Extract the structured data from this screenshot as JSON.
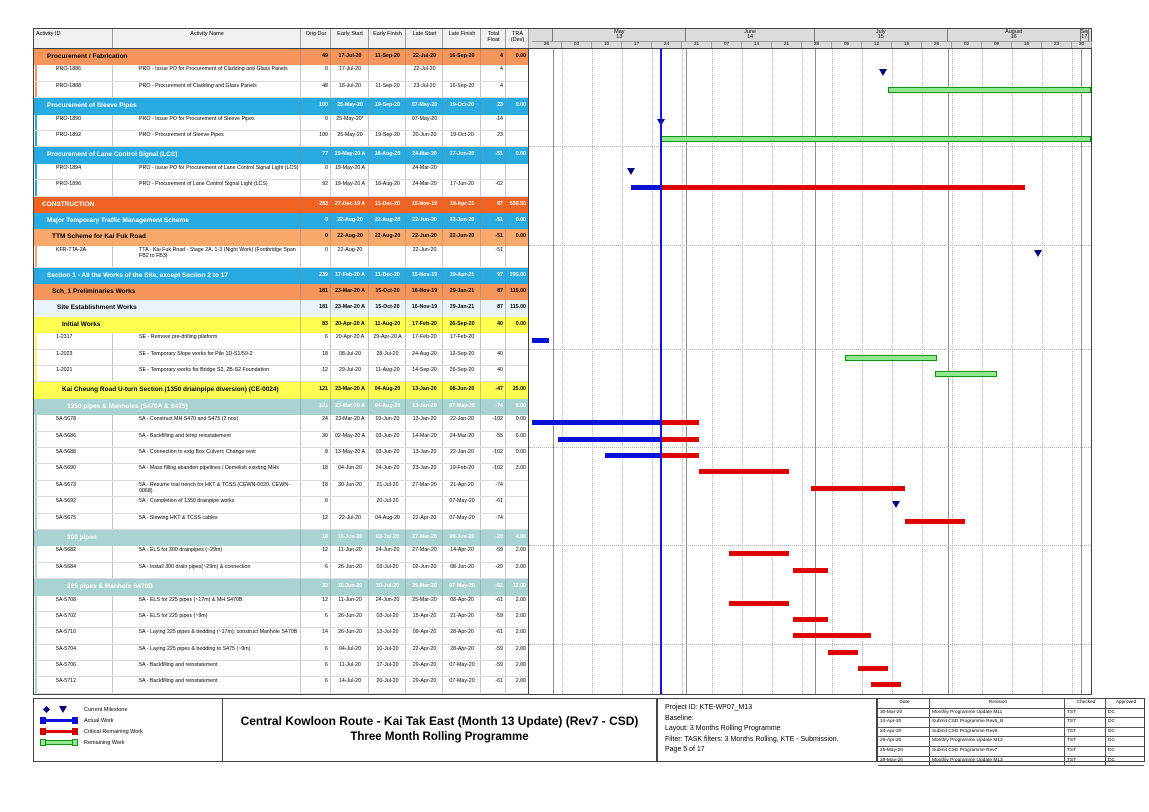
{
  "accent_colors": {
    "construction_orange": "#F26322",
    "band_orange": "#F5955C",
    "band_orange_light": "#F9A96B",
    "band_blue": "#29ABE2",
    "band_pale": "#EAF3FA",
    "band_yellow": "#FFFF52",
    "band_teal": "#A9D3D2",
    "actual_bar": "#0912D6",
    "critical_bar": "#E00000",
    "remaining_bar": "#8FE78F",
    "milestone": "#000080",
    "data_date_line": "#1515E0"
  },
  "table": {
    "columns": [
      "Activity ID",
      "Activity Name",
      "Orig Dur",
      "Early Start",
      "Early Finish",
      "Late Start",
      "Late Finish",
      "Total Float",
      "TRA (Dev)"
    ],
    "rows": [
      {
        "t": "band",
        "cls": "b-o1",
        "lvl": 1,
        "label": "Procurement / Fabrication",
        "v": [
          "49",
          "17-Jul-20",
          "11-Sep-20",
          "22-Jul-20",
          "16-Sep-20",
          "4",
          "0.00"
        ]
      },
      {
        "t": "task",
        "id": "PRO-1886",
        "name": "PRO - Issue PO for Procurement of Cladding and Glass Panels",
        "v": [
          "0",
          "17-Jul-20",
          "",
          "22-Jul-20",
          "",
          "4",
          ""
        ],
        "stripe": "#F5955C",
        "bars": [
          {
            "k": "ms",
            "d": "2020-07-17"
          }
        ]
      },
      {
        "t": "task",
        "id": "PRO-1888",
        "name": "PRO - Procurement of Cladding and Glass Panels",
        "v": [
          "48",
          "18-Jul-20",
          "11-Sep-20",
          "23-Jul-20",
          "16-Sep-20",
          "4",
          ""
        ],
        "stripe": "#F5955C",
        "bars": [
          {
            "k": "rm",
            "s": "2020-07-18",
            "e": "2020-09-11"
          }
        ]
      },
      {
        "t": "band",
        "cls": "b-blue",
        "lvl": 1,
        "label": "Procurement of Sleeve Pipes",
        "v": [
          "100",
          "25-May-20",
          "19-Sep-20",
          "07-May-20",
          "19-Oct-20",
          "23",
          "0.00"
        ]
      },
      {
        "t": "task",
        "id": "PRO-1890",
        "name": "PRO - Issue PO for Procurement of Sleeve Pipes",
        "v": [
          "0",
          "25-May-20*",
          "",
          "07-May-20",
          "",
          "-14",
          ""
        ],
        "stripe": "#29ABE2",
        "bars": [
          {
            "k": "ms",
            "d": "2020-05-26"
          }
        ]
      },
      {
        "t": "task",
        "id": "PRO-1892",
        "name": "PRO - Procurement of Sleeve Pipes",
        "v": [
          "100",
          "25-May-20",
          "19-Sep-20",
          "20-Jun-20",
          "19-Oct-20",
          "23",
          ""
        ],
        "stripe": "#29ABE2",
        "bars": [
          {
            "k": "rm",
            "s": "2020-05-26",
            "e": "2020-09-19"
          }
        ]
      },
      {
        "t": "band",
        "cls": "b-blue",
        "lvl": 1,
        "label": "Procurement of Lane Control Signal (LCS)",
        "v": [
          "77",
          "19-May-20 A",
          "18-Aug-20",
          "24-Mar-20",
          "17-Jun-20",
          "-51",
          "0.00"
        ]
      },
      {
        "t": "task",
        "id": "PRO-1894",
        "name": "PRO - Issue PO for Procurement of Lane Control Signal Light (LCS)",
        "v": [
          "0",
          "19-May-20 A",
          "",
          "24-Mar-20",
          "",
          "",
          ""
        ],
        "stripe": "#29ABE2",
        "bars": [
          {
            "k": "ms",
            "d": "2020-05-19"
          }
        ]
      },
      {
        "t": "task",
        "id": "PRO-1896",
        "name": "PRO - Procurement of Lane Control Signal Light (LCS)",
        "v": [
          "92",
          "19-May-20 A",
          "18-Aug-20",
          "24-Mar-20",
          "17-Jun-20",
          "-62",
          ""
        ],
        "stripe": "#29ABE2",
        "bars": [
          {
            "k": "a",
            "s": "2020-05-19",
            "e": "2020-05-25"
          },
          {
            "k": "cr",
            "s": "2020-05-26",
            "e": "2020-08-18"
          }
        ]
      },
      {
        "t": "band",
        "cls": "b-o0",
        "lvl": 0,
        "label": "CONSTRUCTION",
        "v": [
          "283",
          "27-Dec-19 A",
          "11-Dec-20",
          "15-Nov-19",
          "19-Apr-21",
          "97",
          "556.50"
        ]
      },
      {
        "t": "band",
        "cls": "b-blue",
        "lvl": 1,
        "label": "Major Temporary Traffic Management Scheme",
        "v": [
          "0",
          "22-Aug-20",
          "22-Aug-20",
          "22-Jun-20",
          "22-Jun-20",
          "-51",
          "0.00"
        ]
      },
      {
        "t": "band",
        "cls": "b-o2",
        "lvl": 2,
        "label": "TTM Scheme for Kai Fuk Road",
        "v": [
          "0",
          "22-Aug-20",
          "22-Aug-20",
          "22-Jun-20",
          "22-Jun-20",
          "-51",
          "0.00"
        ]
      },
      {
        "t": "task",
        "id": "KFR-TTA-2A",
        "name": "TTA - Kai Fuk Road - Stage 2A, 1-3 (Night Work) (Footbridge Span FB2 to FB3)",
        "v": [
          "0",
          "22-Aug-20",
          "",
          "22-Jun-20",
          "",
          "-51",
          ""
        ],
        "stripe": "#F9A96B",
        "h": 22,
        "bars": [
          {
            "k": "ms",
            "d": "2020-08-22"
          }
        ]
      },
      {
        "t": "band",
        "cls": "b-blue",
        "lvl": 1,
        "label": "Section 1 - All the Works of the Site, except Section 2 to 17",
        "v": [
          "239",
          "17-Feb-20 A",
          "11-Dec-20",
          "15-Nov-19",
          "19-Apr-21",
          "97",
          "295.00"
        ]
      },
      {
        "t": "band",
        "cls": "b-o1",
        "lvl": 2,
        "label": "Sch_1 Preliminaries Works",
        "v": [
          "181",
          "23-Mar-20 A",
          "15-Oct-20",
          "16-Nov-19",
          "29-Jan-21",
          "87",
          "115.00"
        ]
      },
      {
        "t": "band",
        "cls": "b-pale",
        "lvl": 3,
        "label": "Site Establishment Works",
        "v": [
          "181",
          "23-Mar-20 A",
          "15-Oct-20",
          "16-Nov-19",
          "29-Jan-21",
          "87",
          "115.00"
        ]
      },
      {
        "t": "band",
        "cls": "b-yel",
        "lvl": 4,
        "label": "Initial Works",
        "v": [
          "83",
          "20-Apr-20 A",
          "11-Aug-20",
          "17-Feb-20",
          "26-Sep-20",
          "40",
          "0.00"
        ]
      },
      {
        "t": "task",
        "id": "1-2317",
        "name": "SE - Remove pre-drilling platform",
        "v": [
          "6",
          "20-Apr-20 A",
          "29-Apr-20 A",
          "17-Feb-20",
          "17-Feb-20",
          "",
          ""
        ],
        "stripe": "#FFFF52",
        "bars": [
          {
            "k": "a",
            "s": "2020-04-20",
            "e": "2020-04-29"
          }
        ]
      },
      {
        "t": "task",
        "id": "1-2023",
        "name": "SE - Temporary Slope works for Pile 1D-S1/59-2",
        "v": [
          "18",
          "08-Jul-20",
          "28-Jul-20",
          "24-Aug-20",
          "12-Sep-20",
          "40",
          ""
        ],
        "stripe": "#FFFF52",
        "bars": [
          {
            "k": "rm",
            "s": "2020-07-08",
            "e": "2020-07-28"
          }
        ]
      },
      {
        "t": "task",
        "id": "1-2021",
        "name": "SE - Temporary works for Bridge S2, 2B-S2 Foundation",
        "v": [
          "12",
          "29-Jul-20",
          "11-Aug-20",
          "14-Sep-20",
          "26-Sep-20",
          "40",
          ""
        ],
        "stripe": "#FFFF52",
        "bars": [
          {
            "k": "rm",
            "s": "2020-07-29",
            "e": "2020-08-11"
          }
        ]
      },
      {
        "t": "band",
        "cls": "b-yel",
        "lvl": 4,
        "label": "Kai Cheung Road U-turn Section (1350 driainpipe diversion) (CE-0024)",
        "v": [
          "121",
          "23-Mar-20 A",
          "04-Aug-20",
          "13-Jan-20",
          "08-Jun-20",
          "-47",
          "25.00"
        ]
      },
      {
        "t": "band",
        "cls": "b-teal",
        "lvl": 5,
        "label": "1350 pipes & Manholes (S470A & S475)",
        "v": [
          "121",
          "23-Mar-20 A",
          "04-Aug-20",
          "13-Jan-20",
          "07-May-20",
          "-74",
          "9.00"
        ]
      },
      {
        "t": "task",
        "id": "5A-5678",
        "name": "5A - Construct MH S470 and S475 (2 nos)",
        "v": [
          "24",
          "23-Mar-20 A",
          "03-Jun-20",
          "13-Jan-20",
          "22-Jan-20",
          "-102",
          "0.00"
        ],
        "stripe": "#A9D3D2",
        "bars": [
          {
            "k": "a",
            "s": "2020-03-23",
            "e": "2020-05-25"
          },
          {
            "k": "cr",
            "s": "2020-05-26",
            "e": "2020-06-03"
          }
        ]
      },
      {
        "t": "task",
        "id": "5A-5686",
        "name": "5A - Backfilling and temp reinstatement",
        "v": [
          "30",
          "02-May-20 A",
          "03-Jun-20",
          "14-Mar-20",
          "24-Mar-20",
          "-55",
          "6.00"
        ],
        "stripe": "#A9D3D2",
        "bars": [
          {
            "k": "a",
            "s": "2020-05-02",
            "e": "2020-05-25"
          },
          {
            "k": "cr",
            "s": "2020-05-26",
            "e": "2020-06-03"
          }
        ]
      },
      {
        "t": "task",
        "id": "5A-5688",
        "name": "5A - Connection to extg Box Culvert; Change over",
        "v": [
          "8",
          "13-May-20 A",
          "03-Jun-20",
          "13-Jan-20",
          "22-Jan-20",
          "-102",
          "0.00"
        ],
        "stripe": "#A9D3D2",
        "bars": [
          {
            "k": "a",
            "s": "2020-05-13",
            "e": "2020-05-25"
          },
          {
            "k": "cr",
            "s": "2020-05-26",
            "e": "2020-06-03"
          }
        ]
      },
      {
        "t": "task",
        "id": "5A-5690",
        "name": "5A - Mass filling abandon pipelines / Demolish existing MHs",
        "v": [
          "18",
          "04-Jun-20",
          "24-Jun-20",
          "23-Jan-20",
          "19-Feb-20",
          "-102",
          "3.00"
        ],
        "stripe": "#A9D3D2",
        "bars": [
          {
            "k": "cr",
            "s": "2020-06-04",
            "e": "2020-06-24"
          }
        ]
      },
      {
        "t": "task",
        "id": "5A-5673",
        "name": "5A - Resume trial trench for HKT & TCSS (CEWN-0020, CEWN-0068)",
        "v": [
          "18",
          "30-Jun-20",
          "21-Jul-20",
          "27-Mar-20",
          "21-Apr-20",
          "-74",
          ""
        ],
        "stripe": "#A9D3D2",
        "bars": [
          {
            "k": "cr",
            "s": "2020-06-30",
            "e": "2020-07-21"
          }
        ]
      },
      {
        "t": "task",
        "id": "5A-5692",
        "name": "5A - Completion of 1350 drainpipe works",
        "v": [
          "0",
          "",
          "20-Jul-20",
          "",
          "07-May-20",
          "-61",
          ""
        ],
        "stripe": "#A9D3D2",
        "bars": [
          {
            "k": "ms",
            "d": "2020-07-20"
          }
        ]
      },
      {
        "t": "task",
        "id": "5A-5675",
        "name": "5A - Slewing HKT & TCSS cables",
        "v": [
          "12",
          "22-Jul-20",
          "04-Aug-20",
          "22-Apr-20",
          "07-May-20",
          "-74",
          ""
        ],
        "stripe": "#A9D3D2",
        "bars": [
          {
            "k": "cr",
            "s": "2020-07-22",
            "e": "2020-08-04"
          }
        ]
      },
      {
        "t": "band",
        "cls": "b-teal",
        "lvl": 5,
        "label": "300 pipes",
        "v": [
          "18",
          "11-Jun-20",
          "03-Jul-20",
          "27-Mar-20",
          "08-Jun-20",
          "-20",
          "4.00"
        ]
      },
      {
        "t": "task",
        "id": "5A-5682",
        "name": "5A - ELS for 300 drainpipes (~29m)",
        "v": [
          "12",
          "11-Jun-20",
          "24-Jun-20",
          "27-Mar-20",
          "14-Apr-20",
          "-59",
          "2.00"
        ],
        "stripe": "#A9D3D2",
        "bars": [
          {
            "k": "cr",
            "s": "2020-06-11",
            "e": "2020-06-24"
          }
        ]
      },
      {
        "t": "task",
        "id": "5A-5684",
        "name": "5A - Install 300 drain pipes(~29m) & connection",
        "v": [
          "6",
          "26-Jun-20",
          "03-Jul-20",
          "02-Jun-20",
          "08-Jun-20",
          "-20",
          "2.00"
        ],
        "stripe": "#A9D3D2",
        "bars": [
          {
            "k": "cr",
            "s": "2020-06-26",
            "e": "2020-07-03"
          }
        ]
      },
      {
        "t": "band",
        "cls": "b-teal",
        "lvl": 5,
        "label": "225 pipes & Manhole S470B",
        "v": [
          "32",
          "11-Jun-20",
          "20-Jul-20",
          "25-Mar-20",
          "07-May-20",
          "-61",
          "12.00"
        ]
      },
      {
        "t": "task",
        "id": "5A-5708",
        "name": "5A - ELS for 225 pipes (~17m) & MH S470B",
        "v": [
          "12",
          "11-Jun-20",
          "24-Jun-20",
          "25-Mar-20",
          "08-Apr-20",
          "-61",
          "2.00"
        ],
        "stripe": "#A9D3D2",
        "bars": [
          {
            "k": "cr",
            "s": "2020-06-11",
            "e": "2020-06-24"
          }
        ]
      },
      {
        "t": "task",
        "id": "5A-5702",
        "name": "5A - ELS for 225 pipes (~9m)",
        "v": [
          "6",
          "26-Jun-20",
          "03-Jul-20",
          "15-Apr-20",
          "21-Apr-20",
          "-59",
          "2.00"
        ],
        "stripe": "#A9D3D2",
        "bars": [
          {
            "k": "cr",
            "s": "2020-06-26",
            "e": "2020-07-03"
          }
        ]
      },
      {
        "t": "task",
        "id": "5A-5710",
        "name": "5A - Laying 225 pipes & bedding (~17m); construct Manhole S470B",
        "v": [
          "14",
          "26-Jun-20",
          "13-Jul-20",
          "09-Apr-20",
          "28-Apr-20",
          "-61",
          "2.00"
        ],
        "stripe": "#A9D3D2",
        "bars": [
          {
            "k": "cr",
            "s": "2020-06-26",
            "e": "2020-07-13"
          }
        ]
      },
      {
        "t": "task",
        "id": "5A-5704",
        "name": "5A - Laying 225 pipes & bedding to S475 (~9m)",
        "v": [
          "6",
          "04-Jul-20",
          "10-Jul-20",
          "22-Apr-20",
          "28-Apr-20",
          "-59",
          "2.00"
        ],
        "stripe": "#A9D3D2",
        "bars": [
          {
            "k": "cr",
            "s": "2020-07-04",
            "e": "2020-07-10"
          }
        ]
      },
      {
        "t": "task",
        "id": "5A-5706",
        "name": "5A - Backfilling and reinstatement",
        "v": [
          "6",
          "11-Jul-20",
          "17-Jul-20",
          "29-Apr-20",
          "07-May-20",
          "-59",
          "2.00"
        ],
        "stripe": "#A9D3D2",
        "bars": [
          {
            "k": "cr",
            "s": "2020-07-11",
            "e": "2020-07-17"
          }
        ]
      },
      {
        "t": "task",
        "id": "5A-5712",
        "name": "5A - Backfilling and reinstatement",
        "v": [
          "6",
          "14-Jul-20",
          "20-Jul-20",
          "29-Apr-20",
          "07-May-20",
          "-61",
          "2.00"
        ],
        "stripe": "#A9D3D2",
        "bars": [
          {
            "k": "cr",
            "s": "2020-07-14",
            "e": "2020-07-20"
          }
        ]
      }
    ]
  },
  "gantt": {
    "start_date": "2020-04-26",
    "end_date": "2020-09-03",
    "data_date": "2020-05-26",
    "months": [
      {
        "label": "",
        "num": "",
        "from": "2020-04-26",
        "to": "2020-05-01"
      },
      {
        "label": "May",
        "num": "13",
        "from": "2020-05-01",
        "to": "2020-06-01"
      },
      {
        "label": "June",
        "num": "14",
        "from": "2020-06-01",
        "to": "2020-07-01"
      },
      {
        "label": "July",
        "num": "15",
        "from": "2020-07-01",
        "to": "2020-08-01"
      },
      {
        "label": "August",
        "num": "16",
        "from": "2020-08-01",
        "to": "2020-09-01"
      },
      {
        "label": "September",
        "num": "17",
        "from": "2020-09-01",
        "to": "2020-09-03"
      }
    ],
    "weeks": [
      "26",
      "03",
      "10",
      "17",
      "24",
      "31",
      "07",
      "14",
      "21",
      "28",
      "05",
      "12",
      "19",
      "26",
      "02",
      "09",
      "16",
      "23",
      "30"
    ]
  },
  "footer": {
    "legend": [
      {
        "icon": "current-milestone",
        "label": "Current Milestone"
      },
      {
        "icon": "actual-work",
        "label": "Actual Work"
      },
      {
        "icon": "critical-remaining-work",
        "label": "Critical Remaining Work"
      },
      {
        "icon": "remaining-work",
        "label": "Remaining Work"
      }
    ],
    "title_line1": "Central Kowloon Route - Kai Tak East (Month 13 Update) (Rev7 - CSD)",
    "title_line2": "Three Month Rolling Programme",
    "info": {
      "project_id": "Project ID: KTE-WP07_M13",
      "baseline": "Baseline:",
      "layout": "Layout: 3 Months Rolling Programme",
      "filter": "Filter: TASK filters: 3 Months Rolling, KTE - Submission.",
      "page": "Page 5 of 17"
    },
    "revisions": {
      "columns": [
        "Date",
        "Revision",
        "Checked",
        "Approved"
      ],
      "rows": [
        [
          "30-Mar-20",
          "Monthly Programme Update M11",
          "TST",
          "DC"
        ],
        [
          "14-Apr-20",
          "Submit CSD Programme Rev5_B",
          "TST",
          "DC"
        ],
        [
          "24-Apr-20",
          "Submit CSD Programme Rev6",
          "TST",
          "DC"
        ],
        [
          "29-Apr-20",
          "Monthly Programme Update M12",
          "TST",
          "DC"
        ],
        [
          "25-May-20",
          "Submit CSD Programme Rev7",
          "TST",
          "DC"
        ],
        [
          "29-May-20",
          "Monthly Programme Update M13",
          "TST",
          "DC"
        ]
      ]
    }
  }
}
